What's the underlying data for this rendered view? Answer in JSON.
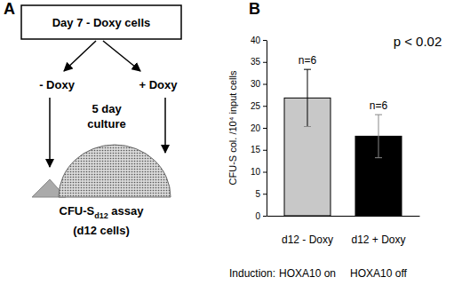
{
  "chart_data": {
    "type": "bar",
    "panel_label": "B",
    "ylabel": "CFU-S col. /10⁴ input cells",
    "categories": [
      "d12 - Doxy",
      "d12 + Doxy"
    ],
    "values": [
      26.8,
      18.1
    ],
    "errors": [
      6.5,
      4.9
    ],
    "colors": [
      "#c8c8c8",
      "#000000"
    ],
    "ylim": [
      0,
      40
    ],
    "yticks": [
      0,
      5,
      10,
      15,
      20,
      25,
      30,
      35,
      40
    ],
    "annotations": {
      "p_value": "p < 0.02",
      "n": [
        "n=6",
        "n=6"
      ],
      "induction_title": "Induction:",
      "induction": [
        "HOXA10 on",
        "HOXA10 off"
      ]
    }
  },
  "diagram": {
    "panel_label": "A",
    "source": "Day 7 - Doxy cells",
    "branches": [
      "- Doxy",
      "+ Doxy"
    ],
    "culture": [
      "5 day",
      "culture"
    ],
    "assay": {
      "main": "CFU-S",
      "sub": "d12",
      "rest": " assay"
    },
    "cells": "(d12 cells)"
  }
}
